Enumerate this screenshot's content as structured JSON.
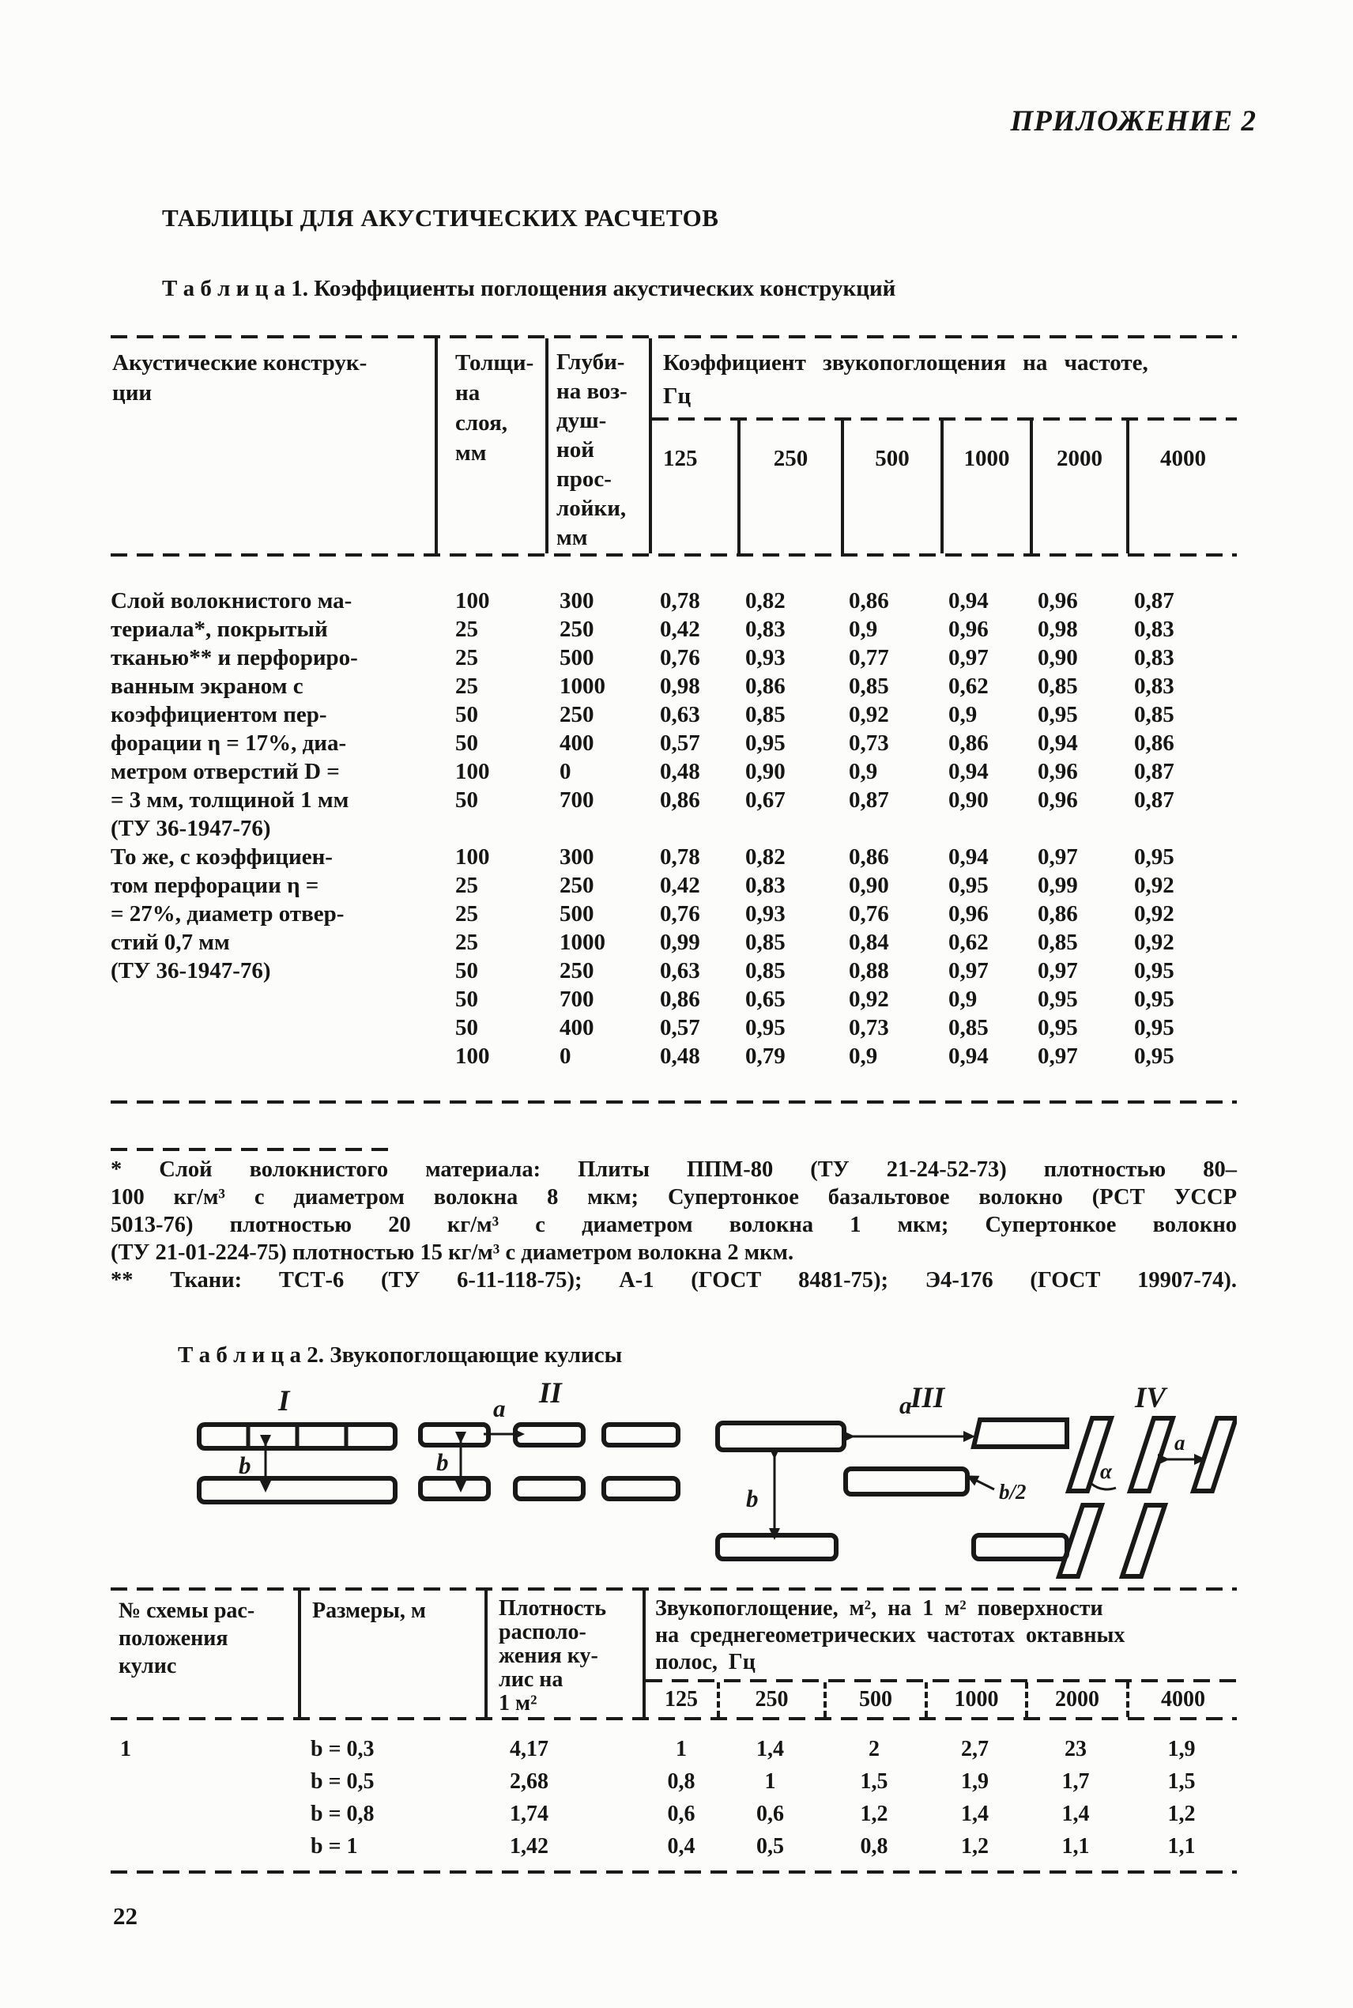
{
  "page": {
    "appendix_label": "ПРИЛОЖЕНИЕ 2",
    "main_title": "ТАБЛИЦЫ ДЛЯ АКУСТИЧЕСКИХ РАСЧЕТОВ",
    "page_number": "22"
  },
  "table1": {
    "caption": "Т а б л и ц а  1. Коэффициенты поглощения акустических конструкций",
    "headers": {
      "construction": "Акустические конструк-\nции",
      "thickness": "Толщи-\nна\nслоя,\nмм",
      "depth": "Глуби-\nна воз-\nдуш-\nной\nпрос-\nлойки,\nмм",
      "group": "Коэффициент звукопоглощения на частоте,\nГц",
      "frequencies": [
        "125",
        "250",
        "500",
        "1000",
        "2000",
        "4000"
      ]
    },
    "rows": [
      [
        "Слой волокнистого ма-",
        "100",
        "300",
        "0,78",
        "0,82",
        "0,86",
        "0,94",
        "0,96",
        "0,87"
      ],
      [
        "териала*, покрытый",
        "25",
        "250",
        "0,42",
        "0,83",
        "0,9",
        "0,96",
        "0,98",
        "0,83"
      ],
      [
        "тканью** и перфориро-",
        "25",
        "500",
        "0,76",
        "0,93",
        "0,77",
        "0,97",
        "0,90",
        "0,83"
      ],
      [
        "ванным экраном с",
        "25",
        "1000",
        "0,98",
        "0,86",
        "0,85",
        "0,62",
        "0,85",
        "0,83"
      ],
      [
        "коэффициентом пер-",
        "50",
        "250",
        "0,63",
        "0,85",
        "0,92",
        "0,9",
        "0,95",
        "0,85"
      ],
      [
        "форации η = 17%, диа-",
        "50",
        "400",
        "0,57",
        "0,95",
        "0,73",
        "0,86",
        "0,94",
        "0,86"
      ],
      [
        "метром отверстий D =",
        "100",
        "0",
        "0,48",
        "0,90",
        "0,9",
        "0,94",
        "0,96",
        "0,87"
      ],
      [
        "= 3 мм, толщиной 1 мм",
        "50",
        "700",
        "0,86",
        "0,67",
        "0,87",
        "0,90",
        "0,96",
        "0,87"
      ],
      [
        "(ТУ 36-1947-76)",
        "",
        "",
        "",
        "",
        "",
        "",
        "",
        ""
      ],
      [
        "То же, с коэффициен-",
        "100",
        "300",
        "0,78",
        "0,82",
        "0,86",
        "0,94",
        "0,97",
        "0,95"
      ],
      [
        "том перфорации η =",
        "25",
        "250",
        "0,42",
        "0,83",
        "0,90",
        "0,95",
        "0,99",
        "0,92"
      ],
      [
        "= 27%, диаметр отвер-",
        "25",
        "500",
        "0,76",
        "0,93",
        "0,76",
        "0,96",
        "0,86",
        "0,92"
      ],
      [
        "стий 0,7 мм",
        "25",
        "1000",
        "0,99",
        "0,85",
        "0,84",
        "0,62",
        "0,85",
        "0,92"
      ],
      [
        "(ТУ 36-1947-76)",
        "50",
        "250",
        "0,63",
        "0,85",
        "0,88",
        "0,97",
        "0,97",
        "0,95"
      ],
      [
        "",
        "50",
        "700",
        "0,86",
        "0,65",
        "0,92",
        "0,9",
        "0,95",
        "0,95"
      ],
      [
        "",
        "50",
        "400",
        "0,57",
        "0,95",
        "0,73",
        "0,85",
        "0,95",
        "0,95"
      ],
      [
        "",
        "100",
        "0",
        "0,48",
        "0,79",
        "0,9",
        "0,94",
        "0,97",
        "0,95"
      ]
    ]
  },
  "footnotes": {
    "lines": [
      "* Слой волокнистого материала: Плиты ППМ-80 (ТУ 21-24-52-73) плотностью 80–",
      "100 кг/м³ с диаметром волокна 8 мкм; Супертонкое базальтовое волокно (РСТ УССР",
      "5013-76) плотностью 20 кг/м³ с диаметром волокна 1 мкм; Супертонкое волокно",
      "(ТУ 21-01-224-75) плотностью 15 кг/м³ с диаметром волокна 2 мкм.",
      "** Ткани: ТСТ-6 (ТУ 6-11-118-75); А-1 (ГОСТ 8481-75); Э4-176 (ГОСТ 19907-74)."
    ]
  },
  "diagrams": {
    "labels": {
      "i": "I",
      "ii": "II",
      "iii": "III",
      "iv": "IV"
    },
    "i": {
      "spacing_label": "b"
    },
    "ii": {
      "gap_label": "a",
      "spacing_label": "b"
    },
    "iii": {
      "gap_label": "a",
      "half_gap_label": "b/2",
      "spacing_label": "b"
    },
    "iv": {
      "angle_label": "α",
      "gap_label": "a"
    }
  },
  "table2": {
    "caption": "Т а б л и ц а  2. Звукопоглощающие кулисы",
    "headers": {
      "scheme": "№ схемы рас-\nположения\nкулис",
      "sizes": "Размеры, м",
      "density": "Плотность\nрасполо-\nжения ку-\nлис на\n1 м²",
      "group": "Звукопоглощение, м², на 1 м² поверхности\nна среднегеометрических частотах октавных\nполос, Гц",
      "frequencies": [
        "125",
        "250",
        "500",
        "1000",
        "2000",
        "4000"
      ]
    },
    "rows": [
      [
        "1",
        "b = 0,3",
        "4,17",
        "1",
        "1,4",
        "2",
        "2,7",
        "23",
        "1,9"
      ],
      [
        "",
        "b = 0,5",
        "2,68",
        "0,8",
        "1",
        "1,5",
        "1,9",
        "1,7",
        "1,5"
      ],
      [
        "",
        "b = 0,8",
        "1,74",
        "0,6",
        "0,6",
        "1,2",
        "1,4",
        "1,4",
        "1,2"
      ],
      [
        "",
        "b = 1",
        "1,42",
        "0,4",
        "0,5",
        "0,8",
        "1,2",
        "1,1",
        "1,1"
      ]
    ]
  }
}
